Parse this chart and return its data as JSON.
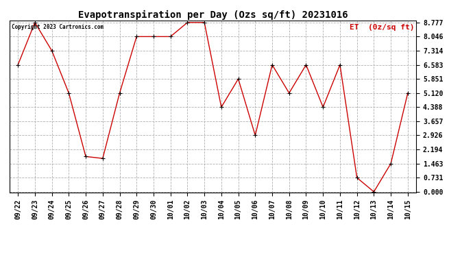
{
  "title": "Evapotranspiration per Day (Ozs sq/ft) 20231016",
  "legend_label": "ET  (0z/sq ft)",
  "copyright": "Copyright 2023 Cartronics.com",
  "x_labels": [
    "09/22",
    "09/23",
    "09/24",
    "09/25",
    "09/26",
    "09/27",
    "09/28",
    "09/29",
    "09/30",
    "10/01",
    "10/02",
    "10/03",
    "10/04",
    "10/05",
    "10/06",
    "10/07",
    "10/08",
    "10/09",
    "10/10",
    "10/11",
    "10/12",
    "10/13",
    "10/14",
    "10/15"
  ],
  "y_values": [
    6.583,
    8.777,
    7.314,
    5.12,
    1.83,
    1.73,
    5.12,
    8.046,
    8.046,
    8.046,
    8.777,
    8.777,
    4.388,
    5.851,
    2.926,
    6.583,
    5.12,
    6.583,
    4.388,
    6.583,
    0.731,
    0.0,
    1.463,
    5.12
  ],
  "y_ticks": [
    0.0,
    0.731,
    1.463,
    2.194,
    2.926,
    3.657,
    4.388,
    5.12,
    5.851,
    6.583,
    7.314,
    8.046,
    8.777
  ],
  "y_min": 0.0,
  "y_max": 8.777,
  "line_color": "#cc0000",
  "marker": "+",
  "marker_color": "#000000",
  "grid_color": "#b0b0b0",
  "background_color": "#ffffff",
  "title_fontsize": 10,
  "tick_fontsize": 7,
  "legend_color": "#cc0000",
  "copyright_fontsize": 5.5,
  "legend_fontsize": 8
}
